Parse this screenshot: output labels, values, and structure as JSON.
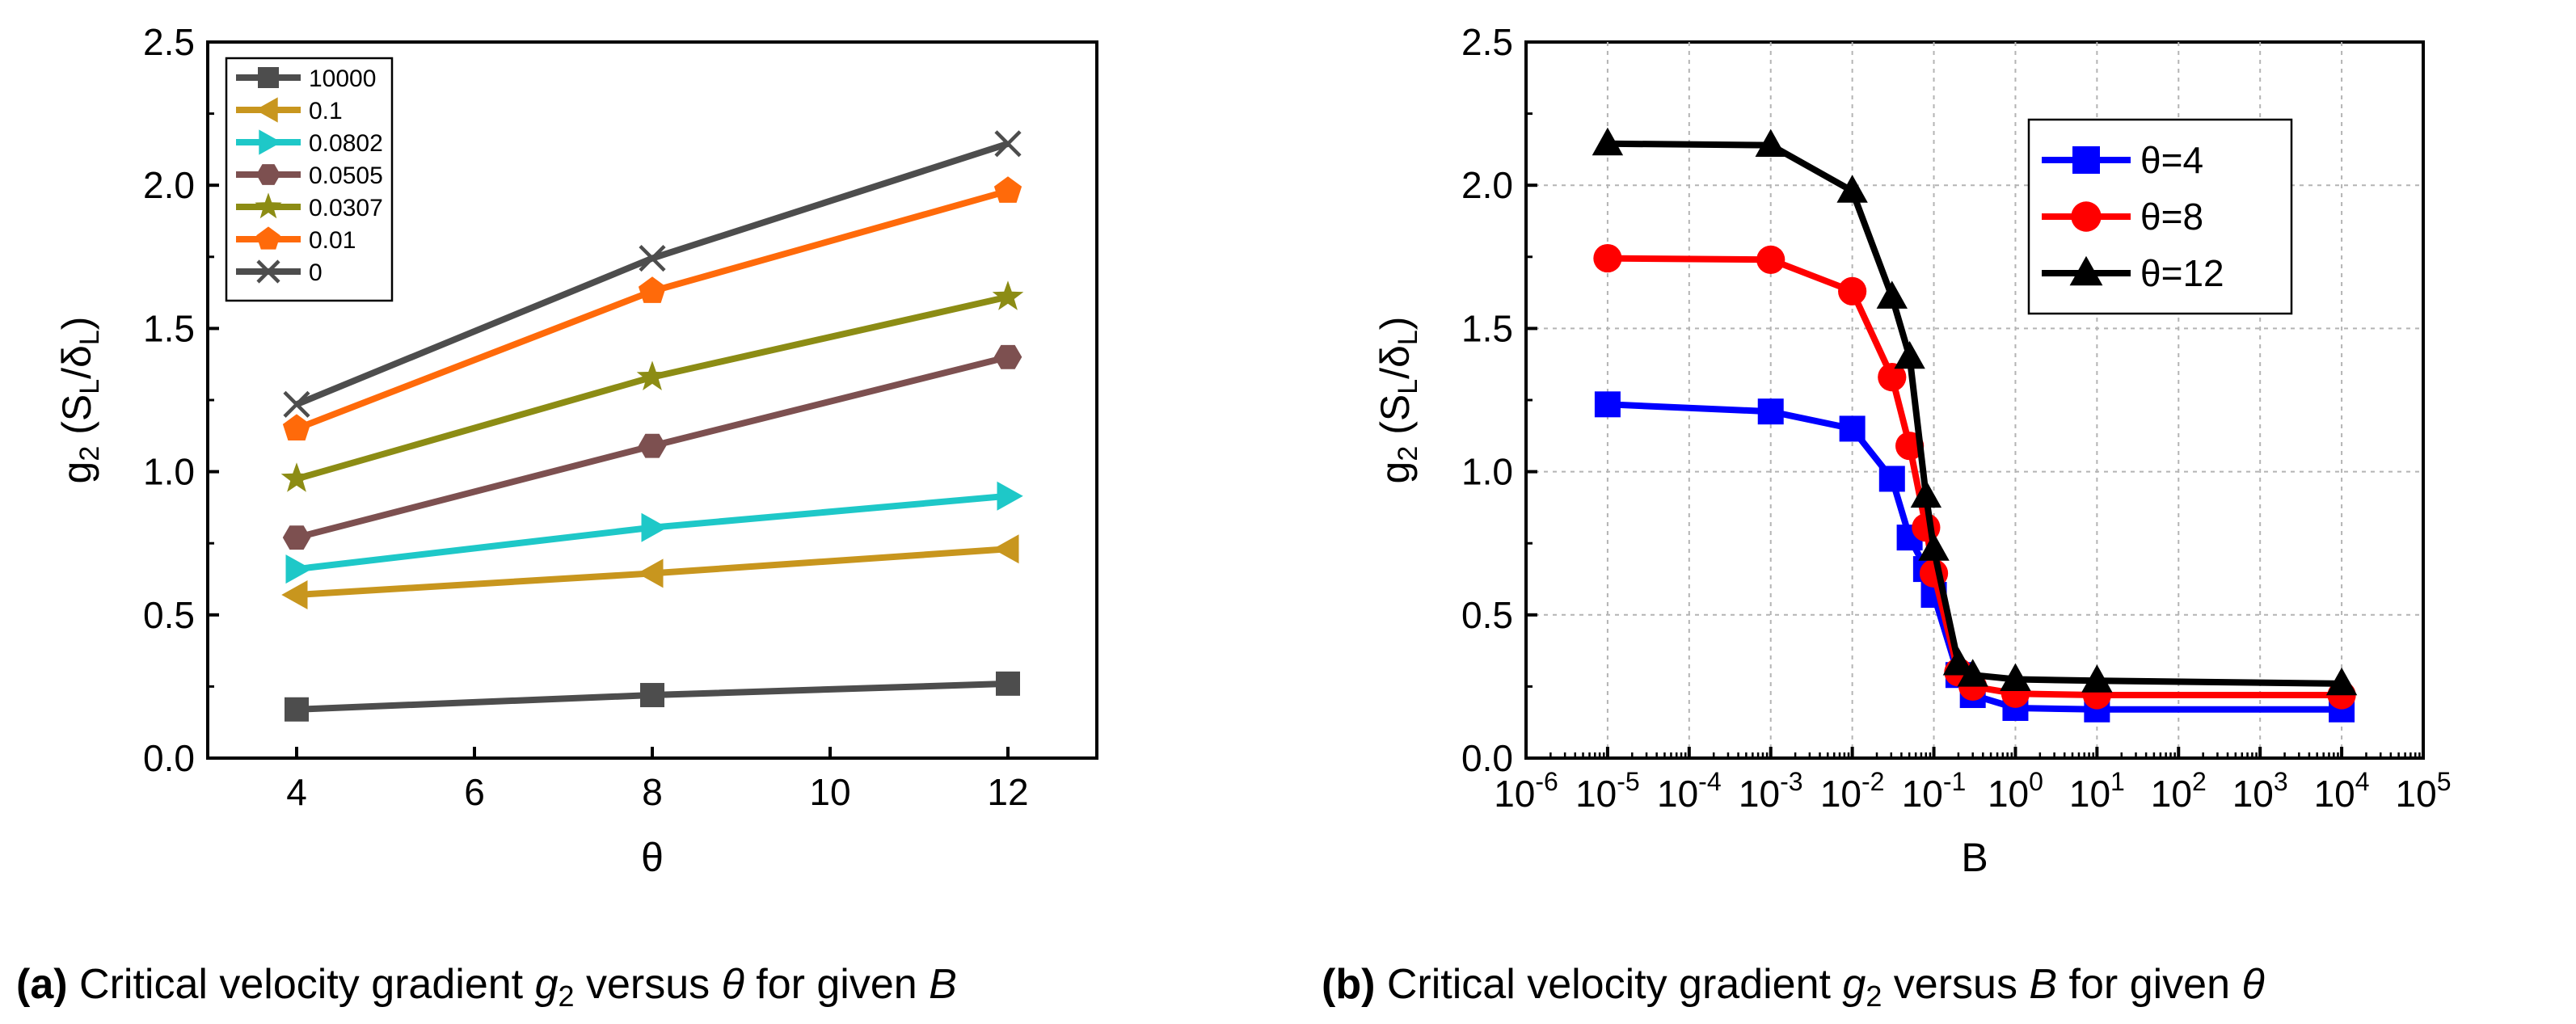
{
  "captions": [
    {
      "label": "(a)",
      "prefix": "Critical velocity gradient ",
      "var": "g",
      "sub": "2",
      "mid": " versus ",
      "xvar": "θ",
      "mid2": " for given ",
      "given": "B"
    },
    {
      "label": "(b)",
      "prefix": "Critical velocity gradient ",
      "var": "g",
      "sub": "2",
      "mid": " versus ",
      "xvar": "B",
      "mid2": " for given ",
      "given": "θ"
    }
  ],
  "chart_data": [
    {
      "type": "line",
      "title": "",
      "xlabel": "θ",
      "ylabel": "g2 (SL/δL)",
      "ylabel_parts": {
        "g": "g",
        "g_sub": "2",
        "open": " (S",
        "s_sub": "L",
        "slash": "/δ",
        "d_sub": "L",
        "close": ")"
      },
      "xlim": [
        3,
        13
      ],
      "ylim": [
        0,
        2.5
      ],
      "xticks": [
        4,
        6,
        8,
        10,
        12
      ],
      "xtick_labels": [
        "4",
        "6",
        "8",
        "10",
        "12"
      ],
      "yticks": [
        0,
        0.5,
        1.0,
        1.5,
        2.0,
        2.5
      ],
      "ytick_labels": [
        "0.0",
        "0.5",
        "1.0",
        "1.5",
        "2.0",
        "2.5"
      ],
      "legend_position": "top-left",
      "x": [
        4,
        8,
        12
      ],
      "series": [
        {
          "name": "10000",
          "marker": "square",
          "color": "#4d4d4d",
          "values": [
            0.17,
            0.22,
            0.26
          ]
        },
        {
          "name": "0.1",
          "marker": "triangle-left",
          "color": "#c8961e",
          "values": [
            0.57,
            0.645,
            0.73
          ]
        },
        {
          "name": "0.0802",
          "marker": "triangle-right",
          "color": "#1ec8c8",
          "values": [
            0.66,
            0.805,
            0.915
          ]
        },
        {
          "name": "0.0505",
          "marker": "hexagon",
          "color": "#7d5050",
          "values": [
            0.77,
            1.09,
            1.4
          ]
        },
        {
          "name": "0.0307",
          "marker": "star",
          "color": "#8c8c14",
          "values": [
            0.975,
            1.33,
            1.61
          ]
        },
        {
          "name": "0.01",
          "marker": "pentagon",
          "color": "#ff6a0a",
          "values": [
            1.15,
            1.63,
            1.98
          ]
        },
        {
          "name": "0",
          "marker": "x",
          "color": "#4d4d4d",
          "values": [
            1.235,
            1.745,
            2.145
          ]
        }
      ]
    },
    {
      "type": "line",
      "title": "",
      "xlabel": "B",
      "ylabel": "g2 (SL/δL)",
      "ylabel_parts": {
        "g": "g",
        "g_sub": "2",
        "open": " (S",
        "s_sub": "L",
        "slash": "/δ",
        "d_sub": "L",
        "close": ")"
      },
      "xscale": "log",
      "xlim_log10": [
        -6,
        5
      ],
      "ylim": [
        0,
        2.5
      ],
      "xtick_exponents": [
        "-6",
        "-5",
        "-4",
        "-3",
        "-2",
        "-1",
        "0",
        "1",
        "2",
        "3",
        "4",
        "5"
      ],
      "xtick_base": "10",
      "yticks": [
        0,
        0.5,
        1.0,
        1.5,
        2.0,
        2.5
      ],
      "ytick_labels": [
        "0.0",
        "0.5",
        "1.0",
        "1.5",
        "2.0",
        "2.5"
      ],
      "grid": true,
      "legend_position": "top-right",
      "x": [
        1e-05,
        0.001,
        0.01,
        0.0307,
        0.0505,
        0.0802,
        0.1,
        0.2,
        0.3,
        1,
        10,
        10000
      ],
      "series": [
        {
          "name": "θ=4",
          "marker": "square",
          "color": "#0000ff",
          "values": [
            1.235,
            1.21,
            1.15,
            0.975,
            0.77,
            0.66,
            0.57,
            0.29,
            0.22,
            0.175,
            0.17,
            0.17
          ]
        },
        {
          "name": "θ=8",
          "marker": "circle",
          "color": "#ff0000",
          "values": [
            1.745,
            1.74,
            1.63,
            1.33,
            1.09,
            0.805,
            0.645,
            0.3,
            0.25,
            0.225,
            0.22,
            0.22
          ]
        },
        {
          "name": "θ=12",
          "marker": "triangle-up",
          "color": "#000000",
          "values": [
            2.145,
            2.14,
            1.98,
            1.61,
            1.4,
            0.915,
            0.73,
            0.33,
            0.29,
            0.275,
            0.27,
            0.26
          ]
        }
      ]
    }
  ]
}
